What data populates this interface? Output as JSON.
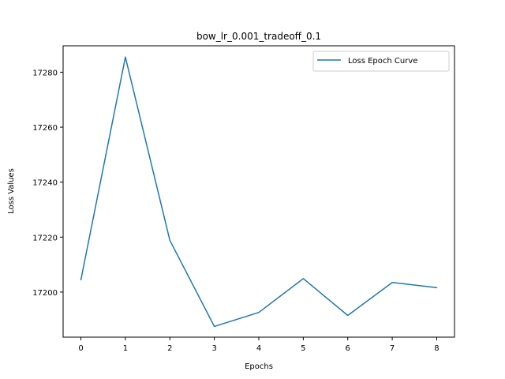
{
  "chart_data": {
    "type": "line",
    "title": "bow_lr_0.001_tradeoff_0.1",
    "xlabel": "Epochs",
    "ylabel": "Loss Values",
    "x": [
      0,
      1,
      2,
      3,
      4,
      5,
      6,
      7,
      8
    ],
    "series": [
      {
        "name": "Loss Epoch Curve",
        "color": "#1f77b4",
        "values": [
          17204.5,
          17285.5,
          17218.8,
          17187.5,
          17192.6,
          17204.9,
          17191.5,
          17203.5,
          17201.6
        ]
      }
    ],
    "xlim": [
      -0.4,
      8.4
    ],
    "ylim": [
      17183.6,
      17289.6
    ],
    "xticks": [
      0,
      1,
      2,
      3,
      4,
      5,
      6,
      7,
      8
    ],
    "yticks": [
      17200,
      17220,
      17240,
      17260,
      17280
    ],
    "grid": false,
    "legend_position": "top-right"
  }
}
